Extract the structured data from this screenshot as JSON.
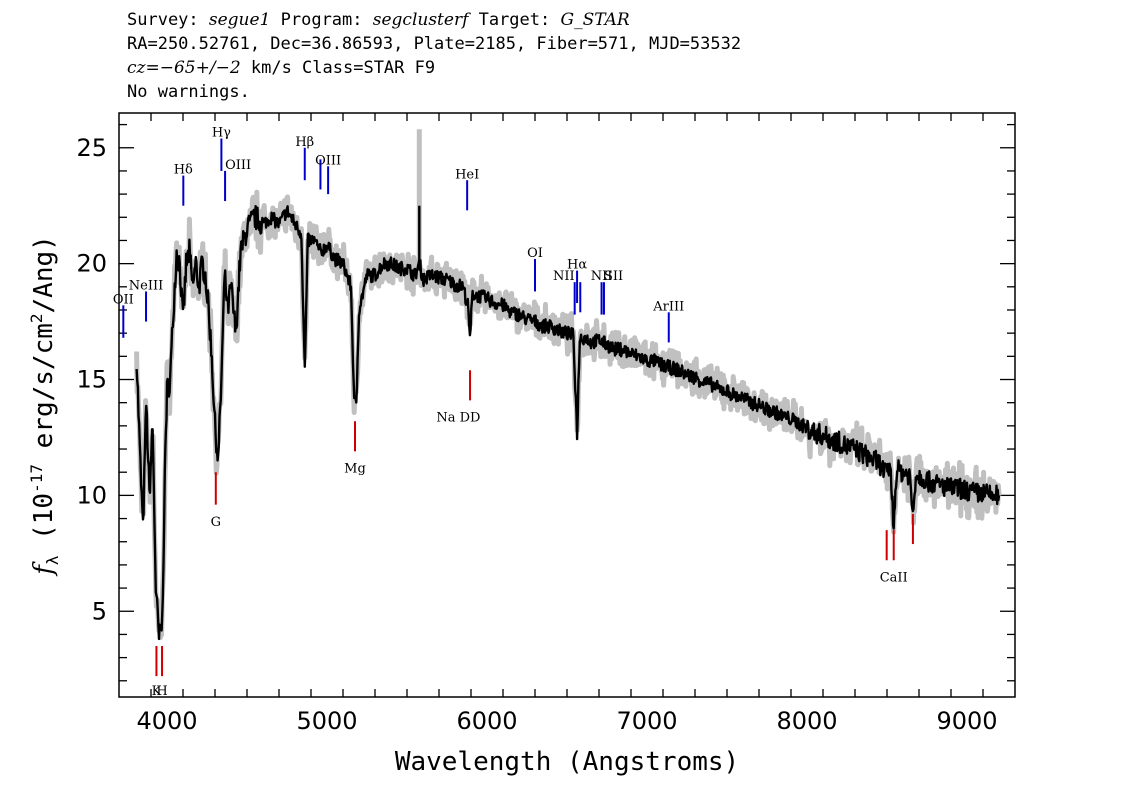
{
  "header": {
    "l1_survey_label": "Survey: ",
    "l1_survey": "segue1",
    "l1_program_label": " Program: ",
    "l1_program": "segclusterf",
    "l1_target_label": " Target: ",
    "l1_target": "G_STAR",
    "l2": "RA=250.52761, Dec=36.86593, Plate=2185, Fiber=571, MJD=53532",
    "l3_cz": "cz=−65+/−2",
    "l3_rest": " km/s Class=STAR F9",
    "l4": "No warnings."
  },
  "chart_data": {
    "type": "line",
    "xlabel": "Wavelength (Angstroms)",
    "ylabel": "f_λ (10^-17 erg/s/cm^2/Ang)",
    "xlim": [
      3700,
      9300
    ],
    "ylim": [
      1.3,
      26.5
    ],
    "x_ticks": [
      4000,
      5000,
      6000,
      7000,
      8000,
      9000
    ],
    "y_ticks": [
      5,
      10,
      15,
      20,
      25
    ],
    "colors": {
      "flux": "#000000",
      "error": "#c0c0c0",
      "emission": "#0000cc",
      "absorption": "#cc0000"
    },
    "spectrum": {
      "name": "flux",
      "points": [
        [
          3810,
          16
        ],
        [
          3830,
          12
        ],
        [
          3850,
          8.5
        ],
        [
          3870,
          14
        ],
        [
          3890,
          10
        ],
        [
          3910,
          13
        ],
        [
          3930,
          6
        ],
        [
          3950,
          3.8
        ],
        [
          3970,
          4.5
        ],
        [
          3990,
          12
        ],
        [
          4000,
          14.5
        ],
        [
          4020,
          15
        ],
        [
          4040,
          18
        ],
        [
          4060,
          20.5
        ],
        [
          4080,
          20
        ],
        [
          4100,
          17.5
        ],
        [
          4120,
          20
        ],
        [
          4140,
          20.5
        ],
        [
          4160,
          19
        ],
        [
          4180,
          20
        ],
        [
          4200,
          19
        ],
        [
          4220,
          20
        ],
        [
          4240,
          19.5
        ],
        [
          4260,
          18
        ],
        [
          4280,
          16
        ],
        [
          4300,
          13
        ],
        [
          4320,
          11.5
        ],
        [
          4340,
          15
        ],
        [
          4360,
          19.5
        ],
        [
          4380,
          18
        ],
        [
          4400,
          19
        ],
        [
          4430,
          17
        ],
        [
          4460,
          20.5
        ],
        [
          4500,
          21.5
        ],
        [
          4550,
          22
        ],
        [
          4600,
          21.7
        ],
        [
          4650,
          22
        ],
        [
          4700,
          21.7
        ],
        [
          4750,
          22.3
        ],
        [
          4800,
          21.7
        ],
        [
          4840,
          21.3
        ],
        [
          4861,
          15.4
        ],
        [
          4880,
          21
        ],
        [
          4920,
          21
        ],
        [
          4960,
          20.5
        ],
        [
          5000,
          20.8
        ],
        [
          5050,
          20.2
        ],
        [
          5100,
          20
        ],
        [
          5150,
          19
        ],
        [
          5170,
          14
        ],
        [
          5183,
          13.9
        ],
        [
          5200,
          18
        ],
        [
          5250,
          19.5
        ],
        [
          5300,
          19.5
        ],
        [
          5350,
          20
        ],
        [
          5400,
          20
        ],
        [
          5450,
          19.8
        ],
        [
          5500,
          19.8
        ],
        [
          5550,
          19.5
        ],
        [
          5580,
          20
        ],
        [
          5600,
          19.3
        ],
        [
          5650,
          19.5
        ],
        [
          5700,
          19.4
        ],
        [
          5750,
          19.3
        ],
        [
          5800,
          19.1
        ],
        [
          5850,
          19
        ],
        [
          5880,
          18.2
        ],
        [
          5893,
          16.8
        ],
        [
          5910,
          18.7
        ],
        [
          5950,
          18.6
        ],
        [
          6000,
          18.5
        ],
        [
          6050,
          18.3
        ],
        [
          6100,
          18.2
        ],
        [
          6150,
          17.9
        ],
        [
          6200,
          17.8
        ],
        [
          6250,
          17.6
        ],
        [
          6300,
          17.5
        ],
        [
          6350,
          17.3
        ],
        [
          6400,
          17.3
        ],
        [
          6450,
          17.1
        ],
        [
          6500,
          17
        ],
        [
          6540,
          16.9
        ],
        [
          6563,
          12.7
        ],
        [
          6580,
          16.8
        ],
        [
          6620,
          16.8
        ],
        [
          6650,
          16.6
        ],
        [
          6700,
          16.7
        ],
        [
          6750,
          16.5
        ],
        [
          6800,
          16.3
        ],
        [
          6850,
          16.3
        ],
        [
          6900,
          16.1
        ],
        [
          6950,
          16
        ],
        [
          7000,
          15.8
        ],
        [
          7050,
          15.8
        ],
        [
          7100,
          15.6
        ],
        [
          7150,
          15.5
        ],
        [
          7200,
          15.4
        ],
        [
          7250,
          15.2
        ],
        [
          7300,
          15.1
        ],
        [
          7350,
          14.9
        ],
        [
          7400,
          14.8
        ],
        [
          7450,
          14.6
        ],
        [
          7500,
          14.5
        ],
        [
          7550,
          14.3
        ],
        [
          7600,
          14.2
        ],
        [
          7650,
          14
        ],
        [
          7700,
          13.9
        ],
        [
          7750,
          13.7
        ],
        [
          7800,
          13.6
        ],
        [
          7850,
          13.4
        ],
        [
          7900,
          13.3
        ],
        [
          7950,
          13.1
        ],
        [
          8000,
          12.9
        ],
        [
          8050,
          12.7
        ],
        [
          8100,
          12.6
        ],
        [
          8150,
          12.4
        ],
        [
          8200,
          12.3
        ],
        [
          8250,
          12.1
        ],
        [
          8300,
          12
        ],
        [
          8350,
          11.8
        ],
        [
          8400,
          11.6
        ],
        [
          8450,
          11.4
        ],
        [
          8498,
          10.9
        ],
        [
          8520,
          11.3
        ],
        [
          8542,
          8.7
        ],
        [
          8560,
          11.1
        ],
        [
          8600,
          11
        ],
        [
          8640,
          10.9
        ],
        [
          8662,
          9.2
        ],
        [
          8680,
          10.9
        ],
        [
          8720,
          10.8
        ],
        [
          8760,
          10.6
        ],
        [
          8800,
          10.5
        ],
        [
          8850,
          10.4
        ],
        [
          8900,
          10.3
        ],
        [
          8950,
          10.3
        ],
        [
          9000,
          10.2
        ],
        [
          9050,
          10.1
        ],
        [
          9100,
          10.1
        ],
        [
          9150,
          10
        ],
        [
          9200,
          10
        ]
      ]
    },
    "emission_lines": [
      {
        "label": "OII",
        "x": 3727,
        "y0": 16.8,
        "y1": 18.2,
        "ly": 18.5,
        "anchor": "middle"
      },
      {
        "label": "NeIII",
        "x": 3869,
        "y0": 17.5,
        "y1": 18.8,
        "ly": 19.1,
        "anchor": "middle"
      },
      {
        "label": "Hδ",
        "x": 4102,
        "y0": 22.5,
        "y1": 23.8,
        "ly": 24.1,
        "anchor": "middle"
      },
      {
        "label": "Hγ",
        "x": 4340,
        "y0": 24,
        "y1": 25.4,
        "ly": 25.7,
        "anchor": "middle"
      },
      {
        "label": "OIII",
        "x": 4363,
        "y0": 22.7,
        "y1": 24,
        "ly": 24.3,
        "anchor": "start"
      },
      {
        "label": "Hβ",
        "x": 4861,
        "y0": 23.6,
        "y1": 25,
        "ly": 25.3,
        "anchor": "middle"
      },
      {
        "label": "",
        "x": 4959,
        "y0": 23.2,
        "y1": 24.5,
        "ly": 24.8,
        "anchor": "middle"
      },
      {
        "label": "OIII",
        "x": 5007,
        "y0": 23,
        "y1": 24.2,
        "ly": 24.5,
        "anchor": "middle"
      },
      {
        "label": "HeI",
        "x": 5876,
        "y0": 22.3,
        "y1": 23.6,
        "ly": 23.9,
        "anchor": "middle"
      },
      {
        "label": "OI",
        "x": 6300,
        "y0": 18.8,
        "y1": 20.2,
        "ly": 20.5,
        "anchor": "middle"
      },
      {
        "label": "NII",
        "x": 6548,
        "y0": 17.8,
        "y1": 19.2,
        "ly": 19.5,
        "anchor": "end"
      },
      {
        "label": "Hα",
        "x": 6563,
        "y0": 18.3,
        "y1": 19.7,
        "ly": 20,
        "anchor": "middle"
      },
      {
        "label": "",
        "x": 6583,
        "y0": 17.9,
        "y1": 19.2,
        "ly": 19.5,
        "anchor": "middle"
      },
      {
        "label": "NII",
        "x": 6716,
        "y0": 17.8,
        "y1": 19.2,
        "ly": 19.5,
        "anchor": "middle"
      },
      {
        "label": "SII",
        "x": 6731,
        "y0": 17.8,
        "y1": 19.2,
        "ly": 19.5,
        "anchor": "start"
      },
      {
        "label": "ArIII",
        "x": 7136,
        "y0": 16.6,
        "y1": 17.9,
        "ly": 18.2,
        "anchor": "middle"
      }
    ],
    "absorption_lines": [
      {
        "label": "K",
        "x": 3934,
        "y0": 2.2,
        "y1": 3.5,
        "ly": 1.6,
        "anchor": "middle"
      },
      {
        "label": "H",
        "x": 3969,
        "y0": 2.2,
        "y1": 3.5,
        "ly": 1.6,
        "anchor": "middle"
      },
      {
        "label": "G",
        "x": 4305,
        "y0": 9.6,
        "y1": 11,
        "ly": 8.9,
        "anchor": "middle"
      },
      {
        "label": "Mg",
        "x": 5175,
        "y0": 11.9,
        "y1": 13.2,
        "ly": 11.2,
        "anchor": "middle"
      },
      {
        "label": "Na D",
        "x": 5894,
        "y0": 14.1,
        "y1": 15.4,
        "ly": 13.4,
        "anchor": "end"
      },
      {
        "label": "D",
        "x": 5894,
        "y0": 14.1,
        "y1": 14.1,
        "ly": 13.4,
        "anchor": "start"
      },
      {
        "label": "",
        "x": 8498,
        "y0": 7.2,
        "y1": 8.5,
        "ly": 6.5,
        "anchor": "middle"
      },
      {
        "label": "CaII",
        "x": 8542,
        "y0": 7.2,
        "y1": 8.5,
        "ly": 6.5,
        "anchor": "middle"
      },
      {
        "label": "",
        "x": 8662,
        "y0": 7.9,
        "y1": 9.2,
        "ly": 7.2,
        "anchor": "middle"
      }
    ]
  }
}
